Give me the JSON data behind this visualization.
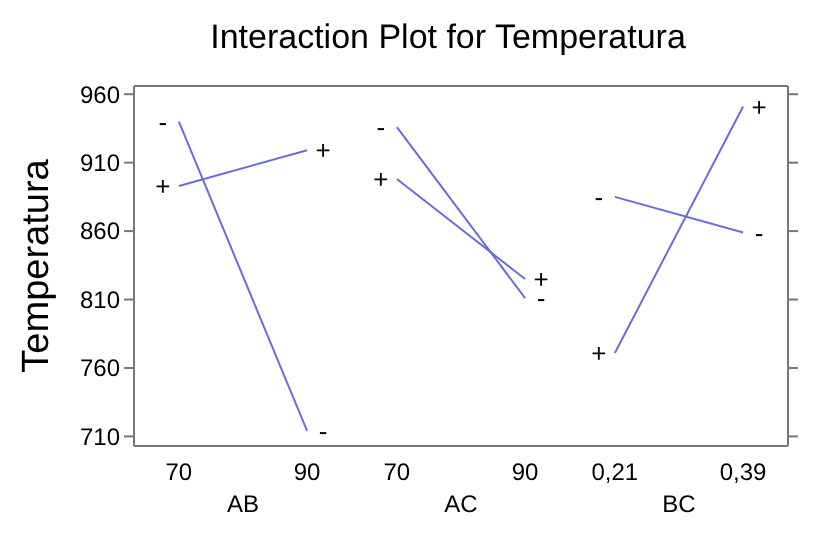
{
  "chart_data": [
    {
      "type": "line",
      "title": "Interaction Plot for Temperatura",
      "ylabel": "Temperatura",
      "xlabel": "AB",
      "categories": [
        "70",
        "90"
      ],
      "ylim": [
        703,
        966
      ],
      "yticks": [
        710,
        760,
        810,
        860,
        910,
        960
      ],
      "marker": "none",
      "series": [
        {
          "name": "-",
          "color": "#6b6bdf",
          "values": [
            940,
            714
          ]
        },
        {
          "name": "+",
          "color": "#6b6bdf",
          "values": [
            893,
            919
          ]
        }
      ]
    },
    {
      "type": "line",
      "xlabel": "AC",
      "categories": [
        "70",
        "90"
      ],
      "ylim": [
        703,
        966
      ],
      "tick_labels": "x",
      "marker": "none",
      "series": [
        {
          "name": "-",
          "color": "#6b6bdf",
          "values": [
            936,
            811
          ]
        },
        {
          "name": "+",
          "color": "#6b6bdf",
          "values": [
            898,
            825
          ]
        }
      ]
    },
    {
      "type": "line",
      "xlabel": "BC",
      "categories": [
        "0,21",
        "0,39"
      ],
      "ylim": [
        703,
        966
      ],
      "tick_labels": "x",
      "marker": "none",
      "series": [
        {
          "name": "-",
          "color": "#6b6bdf",
          "values": [
            885,
            859
          ]
        },
        {
          "name": "+",
          "color": "#6b6bdf",
          "values": [
            771,
            951
          ]
        }
      ]
    }
  ]
}
